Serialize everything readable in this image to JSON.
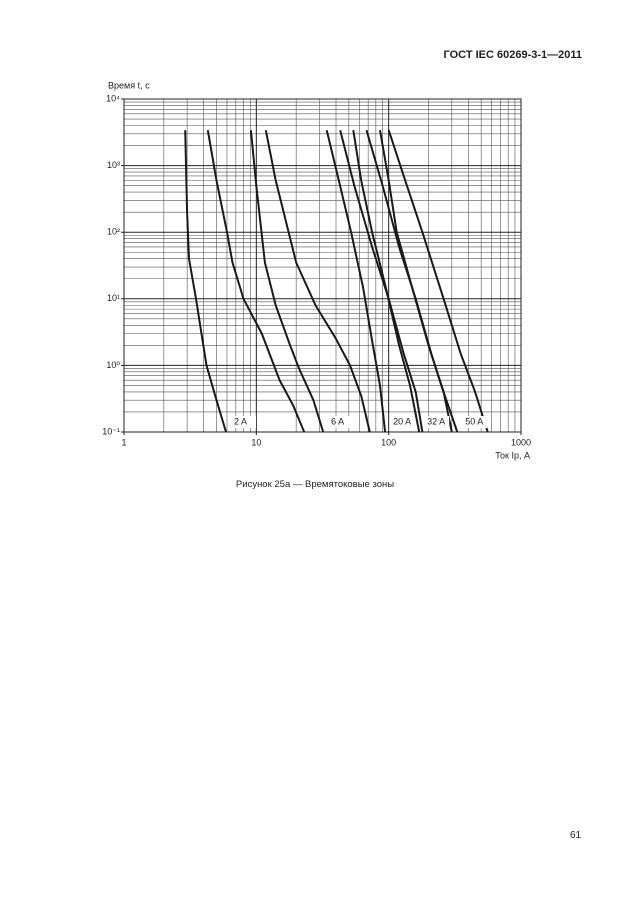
{
  "header": {
    "title": "ГОСТ IEC 60269-3-1—2011"
  },
  "chart_data": {
    "type": "line",
    "y_label": "Время t, с",
    "x_label": "Ток Ip, А",
    "log_x": true,
    "log_y": true,
    "grid": true,
    "xlim": [
      1,
      1000
    ],
    "ylim": [
      0.1,
      10000
    ],
    "xticks": [
      1,
      10,
      100,
      1000
    ],
    "yticks": [
      {
        "value": 10000,
        "label": "10⁴"
      },
      {
        "value": 1000,
        "label": "10³"
      },
      {
        "value": 100,
        "label": "10²"
      },
      {
        "value": 10,
        "label": "10¹"
      },
      {
        "value": 1,
        "label": "10⁰"
      },
      {
        "value": 0.1,
        "label": "10⁻¹"
      }
    ],
    "x_minor_grid": [
      2,
      3,
      4,
      5,
      6,
      7,
      8,
      9,
      20,
      30,
      40,
      50,
      60,
      70,
      80,
      90,
      200,
      300,
      400,
      500,
      600,
      700,
      800,
      900
    ],
    "y_minor_grid": [
      0.2,
      0.3,
      0.4,
      0.5,
      0.6,
      0.7,
      0.8,
      0.9,
      2,
      3,
      4,
      5,
      6,
      7,
      8,
      9,
      20,
      30,
      40,
      50,
      60,
      70,
      80,
      90,
      200,
      300,
      400,
      500,
      600,
      700,
      800,
      900,
      2000,
      3000,
      4000,
      5000,
      6000,
      7000,
      8000,
      9000
    ],
    "color": "#1a1a1a",
    "series": [
      {
        "name": "2 A",
        "curves": [
          {
            "x": [
              2.9,
              3.0,
              3.1,
              3.5,
              4.2,
              5.0,
              5.9
            ],
            "values": [
              3400,
              200,
              40,
              10,
              1,
              0.3,
              0.1
            ]
          },
          {
            "x": [
              4.3,
              5,
              6,
              6.6,
              8,
              11,
              15,
              19,
              23
            ],
            "values": [
              3400,
              600,
              100,
              35,
              10,
              3,
              0.6,
              0.25,
              0.1
            ]
          }
        ]
      },
      {
        "name": "6 A",
        "curves": [
          {
            "x": [
              9.1,
              10,
              11.6,
              14,
              18,
              21,
              27,
              32
            ],
            "values": [
              3400,
              500,
              35,
              8,
              2,
              0.9,
              0.3,
              0.1
            ]
          },
          {
            "x": [
              11.8,
              14,
              20,
              28,
              40,
              51,
              62,
              72
            ],
            "values": [
              3400,
              600,
              35,
              8,
              2.5,
              1,
              0.35,
              0.1
            ]
          }
        ]
      },
      {
        "name": "20 A",
        "curves": [
          {
            "x": [
              34,
              42,
              52,
              64,
              76,
              86,
              94
            ],
            "values": [
              3400,
              600,
              100,
              15,
              2,
              0.5,
              0.1
            ]
          },
          {
            "x": [
              43,
              55,
              75,
              100,
              130,
              160,
              180
            ],
            "values": [
              3400,
              500,
              60,
              10,
              1.5,
              0.4,
              0.1
            ]
          }
        ]
      },
      {
        "name": "32 A",
        "curves": [
          {
            "x": [
              54,
              62,
              75,
              95,
              120,
              145,
              170
            ],
            "values": [
              3400,
              600,
              100,
              15,
              2,
              0.5,
              0.1
            ]
          },
          {
            "x": [
              68,
              90,
              120,
              160,
              210,
              260,
              300
            ],
            "values": [
              3400,
              500,
              60,
              10,
              1.5,
              0.4,
              0.1
            ]
          }
        ]
      },
      {
        "name": "50 A",
        "curves": [
          {
            "x": [
              86,
              100,
              115,
              150,
              200,
              250,
              330
            ],
            "values": [
              3400,
              600,
              100,
              15,
              2,
              0.5,
              0.1
            ]
          },
          {
            "x": [
              100,
              130,
              180,
              260,
              350,
              450,
              560
            ],
            "values": [
              3400,
              700,
              100,
              10,
              1.5,
              0.4,
              0.1
            ]
          }
        ]
      }
    ]
  },
  "caption": "Рисунок 25а — Времятоковые зоны",
  "page_number": "61"
}
